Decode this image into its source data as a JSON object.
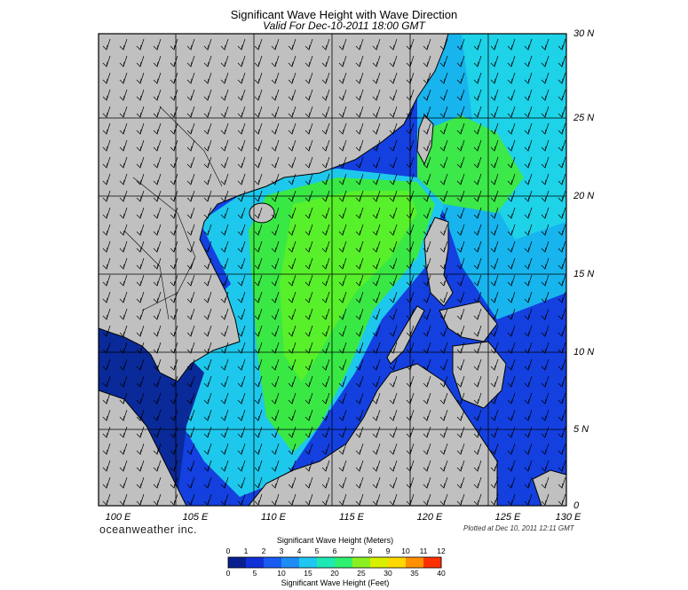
{
  "title": "Significant Wave Height with Wave Direction",
  "subtitle": "Valid For Dec-10-2011 18:00 GMT",
  "brand": "oceanweather inc.",
  "plotted": "Plotted at Dec 10, 2011 12:11 GMT",
  "lat_labels": [
    "30 N",
    "25 N",
    "20 N",
    "15 N",
    "10 N",
    "5 N",
    "0"
  ],
  "lon_labels": [
    "100 E",
    "105 E",
    "110 E",
    "115 E",
    "120 E",
    "125 E",
    "130 E"
  ],
  "colorbar": {
    "meters_title": "Significant Wave Height (Meters)",
    "feet_title": "Significant Wave Height (Feet)",
    "meters_ticks": [
      "0",
      "1",
      "2",
      "3",
      "4",
      "5",
      "6",
      "7",
      "8",
      "9",
      "10",
      "11",
      "12"
    ],
    "feet_ticks": [
      "0",
      "5",
      "10",
      "15",
      "20",
      "25",
      "30",
      "35",
      "40"
    ],
    "colors": [
      "#0a1f8f",
      "#1030d8",
      "#1a5cf0",
      "#1e8cf5",
      "#1ec8f0",
      "#1ee8b4",
      "#30f070",
      "#8cf020",
      "#d8f000",
      "#ffd800",
      "#ff9000",
      "#ff3000"
    ]
  },
  "colors": {
    "land": "#c0c0c0",
    "wave_blue": "#1440e0",
    "wave_cyan": "#18c8ee",
    "wave_green": "#30f02a"
  }
}
